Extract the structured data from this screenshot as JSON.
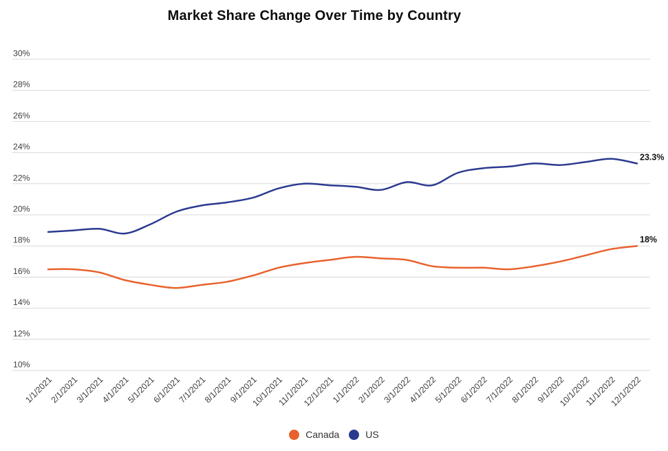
{
  "chart_data": {
    "type": "line",
    "title": "Market Share Change Over Time by Country",
    "x": [
      "1/1/2021",
      "2/1/2021",
      "3/1/2021",
      "4/1/2021",
      "5/1/2021",
      "6/1/2021",
      "7/1/2021",
      "8/1/2021",
      "9/1/2021",
      "10/1/2021",
      "11/1/2021",
      "12/1/2021",
      "1/1/2022",
      "2/1/2022",
      "3/1/2022",
      "4/1/2022",
      "5/1/2022",
      "6/1/2022",
      "7/1/2022",
      "8/1/2022",
      "9/1/2022",
      "10/1/2022",
      "11/1/2022",
      "12/1/2022"
    ],
    "series": [
      {
        "name": "Canada",
        "color": "#E8622D",
        "end_label": "18%",
        "values": [
          16.5,
          16.5,
          16.3,
          15.8,
          15.5,
          15.3,
          15.5,
          15.7,
          16.1,
          16.6,
          16.9,
          17.1,
          17.3,
          17.2,
          17.1,
          16.7,
          16.6,
          16.6,
          16.5,
          16.7,
          17.0,
          17.4,
          17.8,
          18.0
        ]
      },
      {
        "name": "US",
        "color": "#2B3A8F",
        "end_label": "23.3%",
        "values": [
          18.9,
          19.0,
          19.1,
          18.8,
          19.4,
          20.2,
          20.6,
          20.8,
          21.1,
          21.7,
          22.0,
          21.9,
          21.8,
          21.6,
          22.1,
          21.9,
          22.7,
          23.0,
          23.1,
          23.3,
          23.2,
          23.4,
          23.6,
          23.3
        ]
      }
    ],
    "ylim": [
      10,
      30
    ],
    "ytick_values": [
      30,
      28,
      26,
      24,
      22,
      20,
      18,
      16,
      14,
      12,
      10
    ],
    "ytick_labels": [
      "30%",
      "28%",
      "26%",
      "24%",
      "22%",
      "20%",
      "18%",
      "16%",
      "14%",
      "12%",
      "10%"
    ],
    "grid": "horizontal",
    "legend_position": "bottom",
    "styles": {
      "grid_color": "#d8d8d8",
      "tick_label_color": "#404040",
      "end_label_color": "#111111",
      "title_color": "#0d0d0d"
    }
  }
}
